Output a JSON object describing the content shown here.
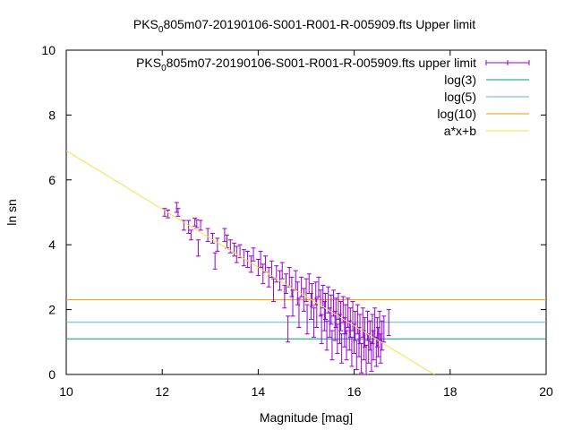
{
  "chart_data": {
    "type": "scatter",
    "title": {
      "prefix": "PKS",
      "sub": "0",
      "suffix": "805m07-20190106-S001-R001-R-005909.fts Upper limit"
    },
    "xlabel": "Magnitude [mag]",
    "ylabel": "ln sn",
    "xlim": [
      10,
      20
    ],
    "ylim": [
      0,
      10
    ],
    "xticks": [
      10,
      12,
      14,
      16,
      18,
      20
    ],
    "yticks": [
      0,
      2,
      4,
      6,
      8,
      10
    ],
    "grid": false,
    "legend_position": "top-right",
    "series": [
      {
        "name": {
          "prefix": "PKS",
          "sub": "0",
          "suffix": "805m07-20190106-S001-R001-R-005909.fts upper limit"
        },
        "kind": "errorbars",
        "color": "#9400d3",
        "points": [
          [
            12.05,
            5.0,
            0.12
          ],
          [
            12.12,
            4.95,
            0.12
          ],
          [
            12.3,
            5.15,
            0.15
          ],
          [
            12.33,
            5.0,
            0.12
          ],
          [
            12.45,
            4.6,
            0.15
          ],
          [
            12.55,
            4.55,
            0.2
          ],
          [
            12.6,
            4.3,
            0.15
          ],
          [
            12.68,
            4.7,
            0.12
          ],
          [
            12.72,
            4.65,
            0.12
          ],
          [
            12.75,
            3.9,
            0.25
          ],
          [
            12.8,
            4.6,
            0.15
          ],
          [
            12.95,
            4.3,
            0.2
          ],
          [
            13.05,
            4.2,
            0.15
          ],
          [
            13.1,
            3.5,
            0.25
          ],
          [
            13.15,
            4.0,
            0.2
          ],
          [
            13.3,
            4.3,
            0.2
          ],
          [
            13.35,
            4.1,
            0.2
          ],
          [
            13.42,
            3.95,
            0.2
          ],
          [
            13.5,
            3.85,
            0.2
          ],
          [
            13.55,
            3.7,
            0.25
          ],
          [
            13.62,
            3.8,
            0.2
          ],
          [
            13.7,
            3.6,
            0.25
          ],
          [
            13.78,
            3.55,
            0.25
          ],
          [
            13.85,
            3.4,
            0.25
          ],
          [
            13.9,
            3.7,
            0.2
          ],
          [
            14.0,
            3.3,
            0.25
          ],
          [
            14.05,
            3.55,
            0.25
          ],
          [
            14.1,
            3.1,
            0.3
          ],
          [
            14.15,
            3.4,
            0.25
          ],
          [
            14.22,
            3.0,
            0.3
          ],
          [
            14.28,
            3.25,
            0.25
          ],
          [
            14.32,
            2.6,
            0.35
          ],
          [
            14.38,
            3.1,
            0.25
          ],
          [
            14.45,
            2.9,
            0.3
          ],
          [
            14.5,
            3.2,
            0.25
          ],
          [
            14.55,
            2.4,
            0.35
          ],
          [
            14.58,
            2.8,
            0.3
          ],
          [
            14.62,
            1.4,
            0.4
          ],
          [
            14.65,
            3.0,
            0.3
          ],
          [
            14.7,
            2.7,
            0.3
          ],
          [
            14.72,
            2.2,
            0.4
          ],
          [
            14.78,
            2.9,
            0.3
          ],
          [
            14.82,
            2.5,
            0.35
          ],
          [
            14.85,
            1.9,
            0.45
          ],
          [
            14.9,
            2.7,
            0.3
          ],
          [
            14.95,
            2.3,
            0.35
          ],
          [
            15.0,
            2.6,
            0.35
          ],
          [
            15.02,
            1.7,
            0.45
          ],
          [
            15.06,
            2.8,
            0.3
          ],
          [
            15.1,
            2.1,
            0.4
          ],
          [
            15.12,
            2.45,
            0.35
          ],
          [
            15.16,
            1.6,
            0.45
          ],
          [
            15.2,
            2.5,
            0.35
          ],
          [
            15.22,
            1.9,
            0.45
          ],
          [
            15.26,
            2.7,
            0.3
          ],
          [
            15.3,
            2.2,
            0.4
          ],
          [
            15.32,
            1.4,
            0.45
          ],
          [
            15.35,
            2.4,
            0.35
          ],
          [
            15.38,
            1.8,
            0.45
          ],
          [
            15.4,
            2.1,
            0.4
          ],
          [
            15.43,
            1.2,
            0.45
          ],
          [
            15.46,
            2.3,
            0.4
          ],
          [
            15.49,
            1.6,
            0.45
          ],
          [
            15.52,
            2.0,
            0.45
          ],
          [
            15.54,
            0.9,
            0.45
          ],
          [
            15.57,
            2.2,
            0.4
          ],
          [
            15.6,
            1.5,
            0.45
          ],
          [
            15.62,
            1.9,
            0.45
          ],
          [
            15.65,
            1.1,
            0.45
          ],
          [
            15.67,
            2.1,
            0.4
          ],
          [
            15.7,
            1.4,
            0.45
          ],
          [
            15.72,
            1.8,
            0.45
          ],
          [
            15.74,
            0.8,
            0.45
          ],
          [
            15.77,
            2.0,
            0.4
          ],
          [
            15.8,
            1.3,
            0.45
          ],
          [
            15.82,
            1.7,
            0.45
          ],
          [
            15.84,
            0.9,
            0.45
          ],
          [
            15.87,
            1.9,
            0.45
          ],
          [
            15.9,
            1.2,
            0.45
          ],
          [
            15.92,
            1.6,
            0.45
          ],
          [
            15.95,
            0.7,
            0.45
          ],
          [
            15.97,
            1.8,
            0.45
          ],
          [
            16.0,
            1.1,
            0.45
          ],
          [
            16.02,
            1.5,
            0.45
          ],
          [
            16.05,
            0.6,
            0.45
          ],
          [
            16.07,
            1.7,
            0.45
          ],
          [
            16.1,
            1.0,
            0.45
          ],
          [
            16.12,
            1.4,
            0.45
          ],
          [
            16.15,
            0.5,
            0.45
          ],
          [
            16.18,
            1.6,
            0.45
          ],
          [
            16.2,
            0.9,
            0.45
          ],
          [
            16.22,
            1.3,
            0.45
          ],
          [
            16.25,
            0.45,
            0.45
          ],
          [
            16.28,
            1.5,
            0.45
          ],
          [
            16.3,
            0.8,
            0.45
          ],
          [
            16.33,
            1.2,
            0.45
          ],
          [
            16.36,
            0.55,
            0.45
          ],
          [
            16.38,
            1.4,
            0.45
          ],
          [
            16.4,
            0.9,
            0.45
          ],
          [
            16.43,
            1.6,
            0.45
          ],
          [
            16.46,
            0.7,
            0.45
          ],
          [
            16.48,
            1.3,
            0.45
          ],
          [
            16.5,
            1.0,
            0.45
          ],
          [
            16.53,
            1.5,
            0.45
          ],
          [
            16.55,
            0.8,
            0.45
          ],
          [
            16.58,
            1.2,
            0.45
          ],
          [
            16.62,
            1.4,
            0.4
          ],
          [
            16.72,
            1.6,
            0.4
          ]
        ]
      },
      {
        "name": "log(3)",
        "kind": "hline",
        "value": 1.0986,
        "color": "#009e73"
      },
      {
        "name": "log(5)",
        "kind": "hline",
        "value": 1.6094,
        "color": "#56b4e9"
      },
      {
        "name": "log(10)",
        "kind": "hline",
        "value": 2.3026,
        "color": "#e69f00"
      },
      {
        "name": "a*x+b",
        "kind": "fit",
        "slope": -0.9,
        "intercept": 15.9,
        "color": "#f0e442"
      }
    ]
  }
}
